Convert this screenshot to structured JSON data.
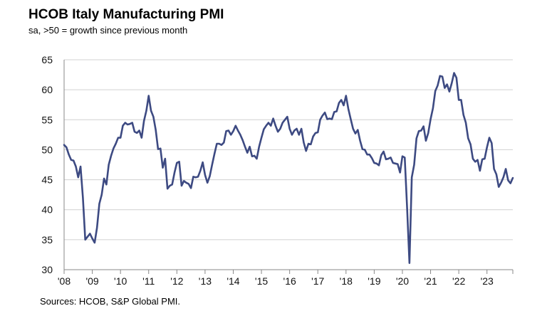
{
  "chart_data": {
    "type": "line",
    "title": "HCOB Italy Manufacturing PMI",
    "subtitle": "sa, >50 = growth since previous month",
    "source": "Sources: HCOB, S&P Global PMI.",
    "xlabel": "",
    "ylabel": "",
    "ylim": [
      30,
      65
    ],
    "yticks": [
      30,
      35,
      40,
      45,
      50,
      55,
      60,
      65
    ],
    "xlim": [
      2008.0,
      2023.917
    ],
    "xticks": [
      {
        "value": 2008,
        "label": "'08"
      },
      {
        "value": 2009,
        "label": "'09"
      },
      {
        "value": 2010,
        "label": "'10"
      },
      {
        "value": 2011,
        "label": "'11"
      },
      {
        "value": 2012,
        "label": "'12"
      },
      {
        "value": 2013,
        "label": "'13"
      },
      {
        "value": 2014,
        "label": "'14"
      },
      {
        "value": 2015,
        "label": "'15"
      },
      {
        "value": 2016,
        "label": "'16"
      },
      {
        "value": 2017,
        "label": "'17"
      },
      {
        "value": 2018,
        "label": "'18"
      },
      {
        "value": 2019,
        "label": "'19"
      },
      {
        "value": 2020,
        "label": "'20"
      },
      {
        "value": 2021,
        "label": "'21"
      },
      {
        "value": 2022,
        "label": "'22"
      },
      {
        "value": 2023,
        "label": "'23"
      }
    ],
    "grid": "horizontal",
    "line_color": "#3d4a82",
    "series": [
      {
        "x": [
          2008.0,
          2008.083,
          2008.167,
          2008.25,
          2008.333,
          2008.417,
          2008.5,
          2008.583,
          2008.667,
          2008.75,
          2008.833,
          2008.917,
          2009.0,
          2009.083,
          2009.167,
          2009.25,
          2009.333,
          2009.417,
          2009.5,
          2009.583,
          2009.667,
          2009.75,
          2009.833,
          2009.917,
          2010.0,
          2010.083,
          2010.167,
          2010.25,
          2010.333,
          2010.417,
          2010.5,
          2010.583,
          2010.667,
          2010.75,
          2010.833,
          2010.917,
          2011.0,
          2011.083,
          2011.167,
          2011.25,
          2011.333,
          2011.417,
          2011.5,
          2011.583,
          2011.667,
          2011.75,
          2011.833,
          2011.917,
          2012.0,
          2012.083,
          2012.167,
          2012.25,
          2012.333,
          2012.417,
          2012.5,
          2012.583,
          2012.667,
          2012.75,
          2012.833,
          2012.917,
          2013.0,
          2013.083,
          2013.167,
          2013.25,
          2013.333,
          2013.417,
          2013.5,
          2013.583,
          2013.667,
          2013.75,
          2013.833,
          2013.917,
          2014.0,
          2014.083,
          2014.167,
          2014.25,
          2014.333,
          2014.417,
          2014.5,
          2014.583,
          2014.667,
          2014.75,
          2014.833,
          2014.917,
          2015.0,
          2015.083,
          2015.167,
          2015.25,
          2015.333,
          2015.417,
          2015.5,
          2015.583,
          2015.667,
          2015.75,
          2015.833,
          2015.917,
          2016.0,
          2016.083,
          2016.167,
          2016.25,
          2016.333,
          2016.417,
          2016.5,
          2016.583,
          2016.667,
          2016.75,
          2016.833,
          2016.917,
          2017.0,
          2017.083,
          2017.167,
          2017.25,
          2017.333,
          2017.417,
          2017.5,
          2017.583,
          2017.667,
          2017.75,
          2017.833,
          2017.917,
          2018.0,
          2018.083,
          2018.167,
          2018.25,
          2018.333,
          2018.417,
          2018.5,
          2018.583,
          2018.667,
          2018.75,
          2018.833,
          2018.917,
          2019.0,
          2019.083,
          2019.167,
          2019.25,
          2019.333,
          2019.417,
          2019.5,
          2019.583,
          2019.667,
          2019.75,
          2019.833,
          2019.917,
          2020.0,
          2020.083,
          2020.167,
          2020.25,
          2020.333,
          2020.417,
          2020.5,
          2020.583,
          2020.667,
          2020.75,
          2020.833,
          2020.917,
          2021.0,
          2021.083,
          2021.167,
          2021.25,
          2021.333,
          2021.417,
          2021.5,
          2021.583,
          2021.667,
          2021.75,
          2021.833,
          2021.917,
          2022.0,
          2022.083,
          2022.167,
          2022.25,
          2022.333,
          2022.417,
          2022.5,
          2022.583,
          2022.667,
          2022.75,
          2022.833,
          2022.917,
          2023.0,
          2023.083,
          2023.167,
          2023.25,
          2023.333,
          2023.417,
          2023.5,
          2023.583,
          2023.667,
          2023.75,
          2023.833,
          2023.917
        ],
        "y": [
          50.8,
          50.4,
          49.2,
          48.3,
          48.2,
          47.2,
          45.4,
          47.2,
          42.0,
          35.0,
          35.5,
          36.0,
          35.2,
          34.5,
          37.0,
          41.0,
          42.5,
          45.2,
          44.2,
          47.5,
          49.0,
          50.2,
          51.0,
          52.0,
          52.0,
          54.0,
          54.5,
          54.2,
          54.3,
          54.5,
          53.0,
          52.8,
          53.2,
          52.0,
          54.8,
          56.5,
          59.0,
          56.5,
          55.5,
          53.3,
          50.1,
          50.2,
          47.0,
          48.5,
          43.5,
          44.0,
          44.2,
          46.2,
          47.8,
          48.0,
          44.0,
          44.8,
          44.5,
          44.3,
          43.6,
          45.5,
          45.4,
          45.5,
          46.5,
          47.9,
          45.8,
          44.5,
          45.6,
          47.5,
          49.3,
          51.0,
          51.0,
          50.8,
          51.2,
          53.1,
          53.2,
          52.5,
          53.1,
          54.0,
          53.2,
          52.5,
          51.6,
          50.5,
          49.5,
          50.5,
          48.9,
          49.0,
          48.5,
          50.5,
          52.0,
          53.4,
          54.0,
          54.5,
          54.0,
          55.2,
          54.0,
          53.0,
          53.5,
          54.5,
          55.0,
          55.5,
          53.5,
          52.5,
          53.2,
          53.5,
          52.5,
          53.5,
          51.2,
          49.8,
          51.0,
          50.9,
          52.2,
          52.8,
          52.9,
          55.0,
          55.7,
          56.2,
          55.1,
          55.2,
          55.1,
          56.3,
          56.4,
          57.8,
          58.3,
          57.4,
          59.0,
          56.8,
          55.1,
          53.5,
          52.7,
          53.3,
          51.5,
          50.1,
          50.0,
          49.2,
          49.2,
          48.6,
          47.8,
          47.7,
          47.4,
          49.1,
          49.7,
          48.4,
          48.5,
          48.7,
          47.8,
          47.7,
          47.6,
          46.2,
          48.9,
          48.7,
          40.3,
          31.1,
          45.4,
          47.5,
          51.9,
          53.1,
          53.2,
          53.9,
          51.5,
          52.8,
          55.1,
          56.9,
          59.8,
          60.7,
          62.3,
          62.2,
          60.3,
          60.9,
          59.7,
          61.1,
          62.8,
          62.0,
          58.3,
          58.3,
          55.8,
          54.5,
          51.9,
          50.9,
          48.5,
          48.0,
          48.3,
          46.5,
          48.4,
          48.5,
          50.4,
          52.0,
          51.1,
          46.8,
          45.9,
          43.8,
          44.5,
          45.4,
          46.8,
          44.9,
          44.4,
          45.3
        ]
      }
    ]
  }
}
